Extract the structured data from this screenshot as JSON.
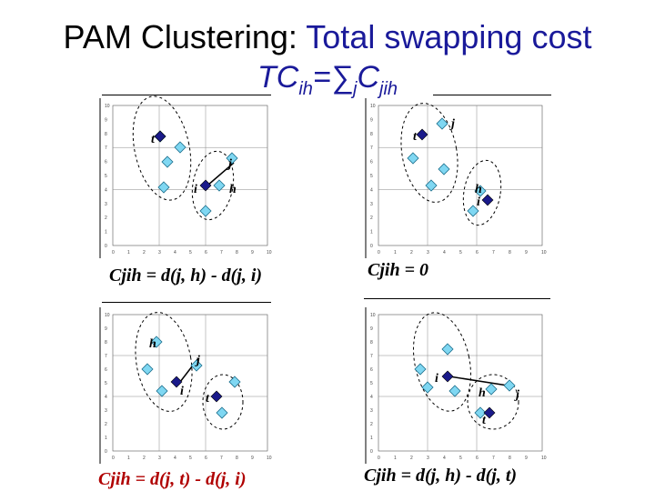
{
  "title": {
    "line1_prefix": "PAM Clustering:",
    "line1_accent": " Total swapping cost",
    "line2_main": "TC",
    "line2_sub1": "ih",
    "line2_eq": "=∑",
    "line2_sub2": "j",
    "line2_c": "C",
    "line2_sub3": "jih"
  },
  "axis_ticks": {
    "y": [
      "10",
      "9",
      "8",
      "7",
      "6",
      "5",
      "4",
      "3",
      "2",
      "1",
      "0"
    ],
    "x": [
      "0",
      "1",
      "2",
      "3",
      "4",
      "5",
      "6",
      "7",
      "8",
      "9",
      "10"
    ]
  },
  "colors": {
    "point": "#7fd7f2",
    "medoid": "#1a1a8a",
    "formula_red": "#b00000",
    "title_blue": "#1a1a9a"
  },
  "panels": [
    {
      "formula": "Cjih = d(j, h) - d(j, i)",
      "labels": {
        "t": "t",
        "i": "i",
        "j": "j",
        "h": "h"
      }
    },
    {
      "formula": "Cjih = 0",
      "labels": {
        "t": "t",
        "j": "j",
        "h": "h",
        "i": "i"
      }
    },
    {
      "formula": "Cjih = d(j, t) - d(j, i)",
      "labels": {
        "h": "h",
        "j": "j",
        "i": "i",
        "t": "t"
      }
    },
    {
      "formula": "Cjih = d(j, h) - d(j, t)",
      "labels": {
        "i": "i",
        "h": "h",
        "j": "j",
        "t": "t"
      }
    }
  ]
}
